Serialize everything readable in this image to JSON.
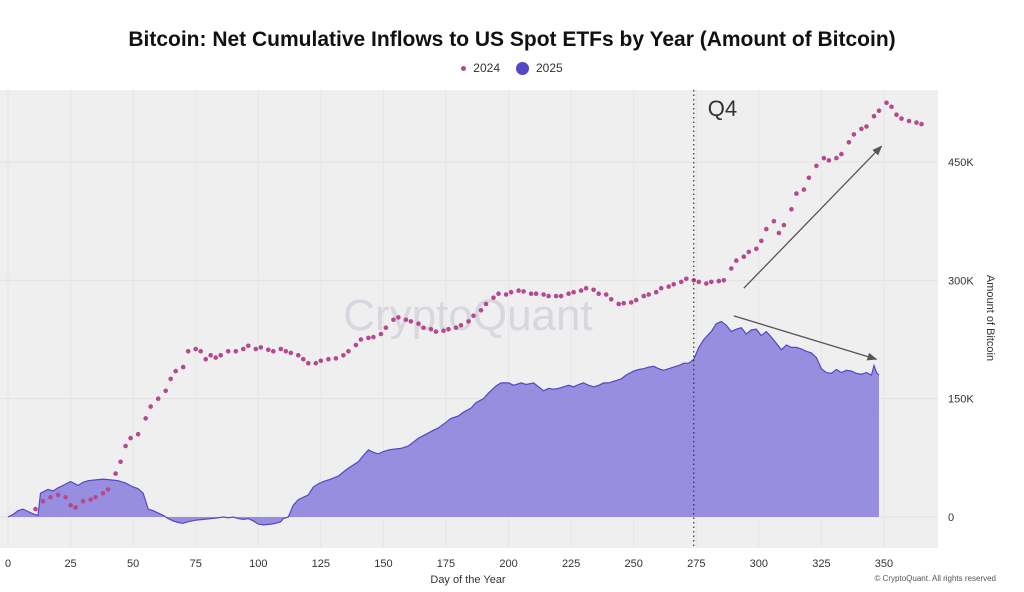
{
  "chart_data": {
    "type": "scatter+area",
    "title": "Bitcoin: Net Cumulative Inflows to US Spot ETFs by Year (Amount of Bitcoin)",
    "xlabel": "Day of the Year",
    "ylabel": "Amount of Bitcoin",
    "xlim": [
      0,
      370
    ],
    "ylim": [
      -50000,
      560000
    ],
    "x_ticks": [
      0,
      25,
      50,
      75,
      100,
      125,
      150,
      175,
      200,
      225,
      250,
      275,
      300,
      325,
      350
    ],
    "y_ticks": [
      0,
      150000,
      300000,
      450000
    ],
    "y_tick_labels": [
      "0",
      "150K",
      "300K",
      "450K"
    ],
    "y_axis_side": "right",
    "legend_position": "top-center",
    "grid": true,
    "watermark": "CryptoQuant",
    "annotations": [
      {
        "type": "vline",
        "x": 274,
        "style": "dotted",
        "label": "Q4"
      },
      {
        "type": "arrow",
        "from": [
          294,
          290000
        ],
        "to": [
          349,
          470000
        ]
      },
      {
        "type": "arrow",
        "from": [
          290,
          255000
        ],
        "to": [
          347,
          200000
        ]
      }
    ],
    "series": [
      {
        "name": "2024",
        "style": "dots",
        "color": "#b5488f",
        "points": [
          [
            11,
            10000
          ],
          [
            14,
            20000
          ],
          [
            17,
            25000
          ],
          [
            20,
            28000
          ],
          [
            23,
            25000
          ],
          [
            25,
            15000
          ],
          [
            27,
            12000
          ],
          [
            30,
            20000
          ],
          [
            33,
            22000
          ],
          [
            35,
            25000
          ],
          [
            38,
            30000
          ],
          [
            40,
            35000
          ],
          [
            43,
            55000
          ],
          [
            45,
            70000
          ],
          [
            47,
            90000
          ],
          [
            49,
            100000
          ],
          [
            52,
            105000
          ],
          [
            55,
            125000
          ],
          [
            57,
            140000
          ],
          [
            60,
            150000
          ],
          [
            63,
            160000
          ],
          [
            65,
            175000
          ],
          [
            67,
            185000
          ],
          [
            70,
            190000
          ],
          [
            72,
            210000
          ],
          [
            75,
            213000
          ],
          [
            77,
            210000
          ],
          [
            79,
            200000
          ],
          [
            81,
            205000
          ],
          [
            83,
            202000
          ],
          [
            85,
            205000
          ],
          [
            88,
            210000
          ],
          [
            91,
            210000
          ],
          [
            94,
            213000
          ],
          [
            96,
            217000
          ],
          [
            99,
            213000
          ],
          [
            101,
            215000
          ],
          [
            104,
            212000
          ],
          [
            106,
            210000
          ],
          [
            109,
            213000
          ],
          [
            111,
            210000
          ],
          [
            113,
            208000
          ],
          [
            116,
            205000
          ],
          [
            118,
            200000
          ],
          [
            120,
            195000
          ],
          [
            123,
            195000
          ],
          [
            125,
            198000
          ],
          [
            128,
            200000
          ],
          [
            131,
            201000
          ],
          [
            134,
            205000
          ],
          [
            136,
            210000
          ],
          [
            139,
            218000
          ],
          [
            141,
            225000
          ],
          [
            144,
            227000
          ],
          [
            146,
            228000
          ],
          [
            149,
            232000
          ],
          [
            151,
            240000
          ],
          [
            154,
            250000
          ],
          [
            156,
            253000
          ],
          [
            159,
            250000
          ],
          [
            161,
            248000
          ],
          [
            164,
            245000
          ],
          [
            166,
            240000
          ],
          [
            169,
            238000
          ],
          [
            171,
            235000
          ],
          [
            174,
            236000
          ],
          [
            176,
            238000
          ],
          [
            179,
            240000
          ],
          [
            181,
            243000
          ],
          [
            184,
            248000
          ],
          [
            186,
            255000
          ],
          [
            189,
            262000
          ],
          [
            191,
            270000
          ],
          [
            194,
            278000
          ],
          [
            196,
            283000
          ],
          [
            199,
            282000
          ],
          [
            201,
            285000
          ],
          [
            204,
            287000
          ],
          [
            206,
            286000
          ],
          [
            209,
            283000
          ],
          [
            211,
            283000
          ],
          [
            214,
            282000
          ],
          [
            216,
            280000
          ],
          [
            219,
            280000
          ],
          [
            221,
            280000
          ],
          [
            224,
            283000
          ],
          [
            226,
            285000
          ],
          [
            229,
            287000
          ],
          [
            231,
            290000
          ],
          [
            234,
            288000
          ],
          [
            236,
            283000
          ],
          [
            239,
            282000
          ],
          [
            241,
            276000
          ],
          [
            244,
            270000
          ],
          [
            246,
            271000
          ],
          [
            249,
            272000
          ],
          [
            251,
            275000
          ],
          [
            254,
            280000
          ],
          [
            256,
            282000
          ],
          [
            259,
            285000
          ],
          [
            261,
            290000
          ],
          [
            264,
            292000
          ],
          [
            266,
            295000
          ],
          [
            269,
            298000
          ],
          [
            271,
            302000
          ],
          [
            274,
            300000
          ],
          [
            276,
            298000
          ],
          [
            279,
            296000
          ],
          [
            281,
            298000
          ],
          [
            284,
            299000
          ],
          [
            286,
            300000
          ],
          [
            289,
            315000
          ],
          [
            291,
            325000
          ],
          [
            294,
            330000
          ],
          [
            296,
            336000
          ],
          [
            299,
            340000
          ],
          [
            301,
            350000
          ],
          [
            303,
            365000
          ],
          [
            306,
            375000
          ],
          [
            308,
            360000
          ],
          [
            310,
            370000
          ],
          [
            313,
            390000
          ],
          [
            315,
            410000
          ],
          [
            318,
            415000
          ],
          [
            320,
            430000
          ],
          [
            323,
            445000
          ],
          [
            326,
            455000
          ],
          [
            328,
            452000
          ],
          [
            331,
            455000
          ],
          [
            333,
            460000
          ],
          [
            336,
            475000
          ],
          [
            338,
            485000
          ],
          [
            341,
            492000
          ],
          [
            343,
            495000
          ],
          [
            346,
            508000
          ],
          [
            348,
            515000
          ],
          [
            351,
            525000
          ],
          [
            353,
            520000
          ],
          [
            355,
            510000
          ],
          [
            357,
            505000
          ],
          [
            360,
            502000
          ],
          [
            363,
            500000
          ],
          [
            365,
            498000
          ]
        ]
      },
      {
        "name": "2025",
        "style": "area",
        "color": "#9085dd",
        "stroke": "#5347c4",
        "points": [
          [
            0,
            0
          ],
          [
            2,
            3000
          ],
          [
            4,
            8000
          ],
          [
            6,
            10000
          ],
          [
            8,
            7000
          ],
          [
            10,
            4000
          ],
          [
            12,
            2000
          ],
          [
            13,
            30000
          ],
          [
            16,
            35000
          ],
          [
            18,
            33000
          ],
          [
            20,
            37000
          ],
          [
            22,
            40000
          ],
          [
            25,
            45000
          ],
          [
            28,
            40000
          ],
          [
            30,
            44000
          ],
          [
            32,
            46000
          ],
          [
            35,
            47000
          ],
          [
            38,
            48000
          ],
          [
            41,
            47000
          ],
          [
            44,
            46000
          ],
          [
            47,
            43000
          ],
          [
            50,
            38000
          ],
          [
            52,
            36000
          ],
          [
            54,
            30000
          ],
          [
            56,
            10000
          ],
          [
            58,
            8000
          ],
          [
            60,
            5000
          ],
          [
            62,
            2000
          ],
          [
            64,
            -2000
          ],
          [
            66,
            -5000
          ],
          [
            68,
            -7000
          ],
          [
            70,
            -8000
          ],
          [
            72,
            -6000
          ],
          [
            75,
            -4000
          ],
          [
            78,
            -3000
          ],
          [
            81,
            -2000
          ],
          [
            84,
            -1000
          ],
          [
            86,
            0
          ],
          [
            88,
            -1000
          ],
          [
            90,
            0
          ],
          [
            92,
            -2000
          ],
          [
            94,
            -3000
          ],
          [
            96,
            -2000
          ],
          [
            98,
            -5000
          ],
          [
            100,
            -9000
          ],
          [
            102,
            -10000
          ],
          [
            105,
            -9000
          ],
          [
            107,
            -8000
          ],
          [
            109,
            -6000
          ],
          [
            110,
            -2000
          ],
          [
            112,
            0
          ],
          [
            114,
            15000
          ],
          [
            116,
            22000
          ],
          [
            118,
            25000
          ],
          [
            120,
            28000
          ],
          [
            122,
            38000
          ],
          [
            124,
            42000
          ],
          [
            126,
            45000
          ],
          [
            129,
            48000
          ],
          [
            132,
            52000
          ],
          [
            134,
            57000
          ],
          [
            136,
            62000
          ],
          [
            138,
            66000
          ],
          [
            140,
            70000
          ],
          [
            142,
            78000
          ],
          [
            144,
            85000
          ],
          [
            146,
            82000
          ],
          [
            148,
            80000
          ],
          [
            150,
            83000
          ],
          [
            152,
            85000
          ],
          [
            154,
            86000
          ],
          [
            157,
            87000
          ],
          [
            160,
            90000
          ],
          [
            162,
            95000
          ],
          [
            164,
            100000
          ],
          [
            167,
            105000
          ],
          [
            170,
            110000
          ],
          [
            172,
            113000
          ],
          [
            175,
            120000
          ],
          [
            177,
            125000
          ],
          [
            180,
            128000
          ],
          [
            182,
            133000
          ],
          [
            185,
            138000
          ],
          [
            187,
            145000
          ],
          [
            190,
            150000
          ],
          [
            192,
            157000
          ],
          [
            195,
            166000
          ],
          [
            197,
            170000
          ],
          [
            200,
            170000
          ],
          [
            202,
            167000
          ],
          [
            205,
            170000
          ],
          [
            207,
            168000
          ],
          [
            210,
            170000
          ],
          [
            212,
            165000
          ],
          [
            214,
            160000
          ],
          [
            216,
            163000
          ],
          [
            218,
            162000
          ],
          [
            220,
            163000
          ],
          [
            222,
            165000
          ],
          [
            224,
            167000
          ],
          [
            226,
            165000
          ],
          [
            228,
            168000
          ],
          [
            230,
            170000
          ],
          [
            232,
            167000
          ],
          [
            234,
            165000
          ],
          [
            236,
            167000
          ],
          [
            238,
            170000
          ],
          [
            240,
            170000
          ],
          [
            242,
            172000
          ],
          [
            245,
            175000
          ],
          [
            247,
            180000
          ],
          [
            250,
            185000
          ],
          [
            252,
            187000
          ],
          [
            254,
            188000
          ],
          [
            256,
            190000
          ],
          [
            258,
            191000
          ],
          [
            260,
            188000
          ],
          [
            262,
            186000
          ],
          [
            264,
            188000
          ],
          [
            266,
            190000
          ],
          [
            268,
            192000
          ],
          [
            270,
            195000
          ],
          [
            272,
            195000
          ],
          [
            274,
            200000
          ],
          [
            276,
            215000
          ],
          [
            278,
            225000
          ],
          [
            281,
            235000
          ],
          [
            283,
            245000
          ],
          [
            285,
            248000
          ],
          [
            287,
            243000
          ],
          [
            289,
            235000
          ],
          [
            291,
            238000
          ],
          [
            293,
            240000
          ],
          [
            295,
            232000
          ],
          [
            297,
            237000
          ],
          [
            299,
            238000
          ],
          [
            301,
            230000
          ],
          [
            303,
            235000
          ],
          [
            305,
            228000
          ],
          [
            307,
            220000
          ],
          [
            309,
            212000
          ],
          [
            311,
            218000
          ],
          [
            313,
            215000
          ],
          [
            315,
            215000
          ],
          [
            317,
            213000
          ],
          [
            319,
            210000
          ],
          [
            321,
            208000
          ],
          [
            323,
            202000
          ],
          [
            325,
            188000
          ],
          [
            327,
            183000
          ],
          [
            329,
            182000
          ],
          [
            331,
            187000
          ],
          [
            333,
            183000
          ],
          [
            335,
            186000
          ],
          [
            337,
            185000
          ],
          [
            339,
            182000
          ],
          [
            341,
            181000
          ],
          [
            343,
            183000
          ],
          [
            345,
            180000
          ],
          [
            346,
            192000
          ],
          [
            347,
            183000
          ],
          [
            348,
            180000
          ]
        ]
      }
    ]
  },
  "copyright": "© CryptoQuant. All rights reserved"
}
